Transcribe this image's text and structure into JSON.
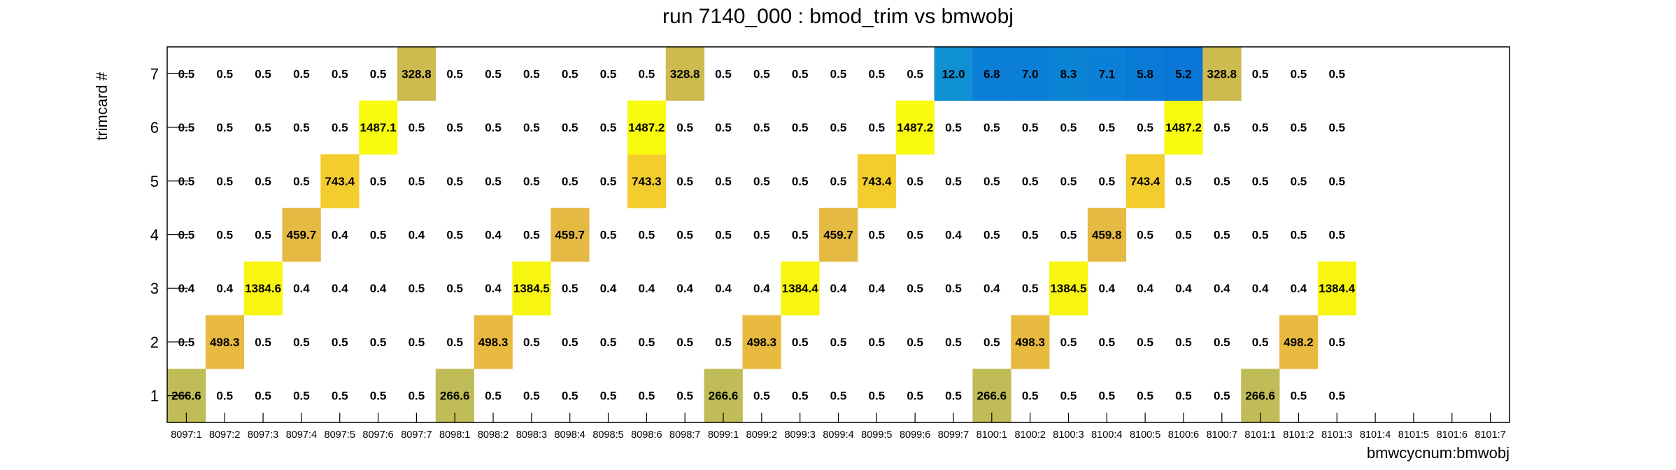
{
  "chart_data": {
    "type": "heatmap",
    "title": "run 7140_000 : bmod_trim vs bmwobj",
    "xlabel": "bmwcycnum:bmwobj",
    "ylabel": "trimcard #",
    "x_categories": [
      "8097:1",
      "8097:2",
      "8097:3",
      "8097:4",
      "8097:5",
      "8097:6",
      "8097:7",
      "8098:1",
      "8098:2",
      "8098:3",
      "8098:4",
      "8098:5",
      "8098:6",
      "8098:7",
      "8099:1",
      "8099:2",
      "8099:3",
      "8099:4",
      "8099:5",
      "8099:6",
      "8099:7",
      "8100:1",
      "8100:2",
      "8100:3",
      "8100:4",
      "8100:5",
      "8100:6",
      "8100:7",
      "8101:1",
      "8101:2",
      "8101:3",
      "8101:4",
      "8101:5",
      "8101:6",
      "8101:7"
    ],
    "y_categories": [
      "1",
      "2",
      "3",
      "4",
      "5",
      "6",
      "7"
    ],
    "rows": [
      {
        "y": "1",
        "values": [
          266.6,
          0.5,
          0.5,
          0.5,
          0.5,
          0.5,
          0.5,
          266.6,
          0.5,
          0.5,
          0.5,
          0.5,
          0.5,
          0.5,
          266.6,
          0.5,
          0.5,
          0.5,
          0.5,
          0.5,
          0.5,
          266.6,
          0.5,
          0.5,
          0.5,
          0.5,
          0.5,
          0.5,
          266.6,
          0.5,
          0.5,
          null,
          null,
          null,
          null
        ]
      },
      {
        "y": "2",
        "values": [
          0.5,
          498.3,
          0.5,
          0.5,
          0.5,
          0.5,
          0.5,
          0.5,
          498.3,
          0.5,
          0.5,
          0.5,
          0.5,
          0.5,
          0.5,
          498.3,
          0.5,
          0.5,
          0.5,
          0.5,
          0.5,
          0.5,
          498.3,
          0.5,
          0.5,
          0.5,
          0.5,
          0.5,
          0.5,
          498.2,
          0.5,
          null,
          null,
          null,
          null
        ]
      },
      {
        "y": "3",
        "values": [
          0.4,
          0.4,
          1384.6,
          0.4,
          0.4,
          0.4,
          0.5,
          0.5,
          0.4,
          1384.5,
          0.5,
          0.4,
          0.4,
          0.4,
          0.4,
          0.4,
          1384.4,
          0.4,
          0.4,
          0.5,
          0.5,
          0.4,
          0.5,
          1384.5,
          0.4,
          0.4,
          0.4,
          0.4,
          0.4,
          0.4,
          1384.4,
          null,
          null,
          null,
          null
        ]
      },
      {
        "y": "4",
        "values": [
          0.5,
          0.5,
          0.5,
          459.7,
          0.4,
          0.5,
          0.4,
          0.5,
          0.4,
          0.5,
          459.7,
          0.5,
          0.5,
          0.5,
          0.5,
          0.5,
          0.5,
          459.7,
          0.5,
          0.5,
          0.4,
          0.5,
          0.5,
          0.5,
          459.8,
          0.5,
          0.5,
          0.5,
          0.5,
          0.5,
          0.5,
          null,
          null,
          null,
          null
        ]
      },
      {
        "y": "5",
        "values": [
          0.5,
          0.5,
          0.5,
          0.5,
          743.4,
          0.5,
          0.5,
          0.5,
          0.5,
          0.5,
          0.5,
          0.5,
          743.3,
          0.5,
          0.5,
          0.5,
          0.5,
          0.5,
          743.4,
          0.5,
          0.5,
          0.5,
          0.5,
          0.5,
          0.5,
          743.4,
          0.5,
          0.5,
          0.5,
          0.5,
          0.5,
          null,
          null,
          null,
          null
        ]
      },
      {
        "y": "6",
        "values": [
          0.5,
          0.5,
          0.5,
          0.5,
          0.5,
          1487.1,
          0.5,
          0.5,
          0.5,
          0.5,
          0.5,
          0.5,
          1487.2,
          0.5,
          0.5,
          0.5,
          0.5,
          0.5,
          0.5,
          1487.2,
          0.5,
          0.5,
          0.5,
          0.5,
          0.5,
          0.5,
          1487.2,
          0.5,
          0.5,
          0.5,
          0.5,
          null,
          null,
          null,
          null
        ]
      },
      {
        "y": "7",
        "values": [
          0.5,
          0.5,
          0.5,
          0.5,
          0.5,
          0.5,
          328.8,
          0.5,
          0.5,
          0.5,
          0.5,
          0.5,
          0.5,
          328.8,
          0.5,
          0.5,
          0.5,
          0.5,
          0.5,
          0.5,
          12.0,
          6.8,
          7.0,
          8.3,
          7.1,
          5.8,
          5.2,
          328.8,
          0.5,
          0.5,
          0.5,
          null,
          null,
          null,
          null
        ]
      }
    ],
    "grid": false,
    "legend": "none"
  }
}
